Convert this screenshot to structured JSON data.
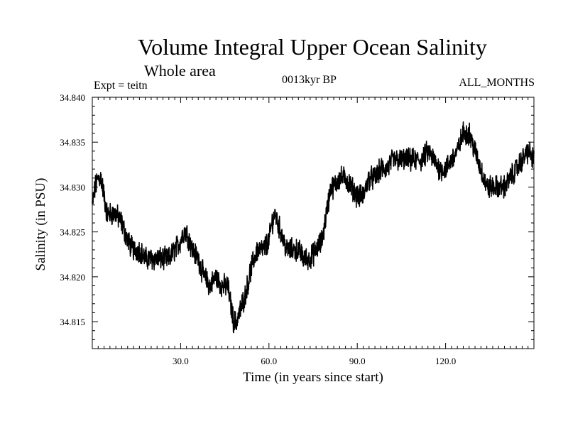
{
  "chart_data": {
    "type": "line",
    "title": "Volume Integral Upper Ocean Salinity",
    "subtitle": "Whole area",
    "left_note": "Expt = teitn",
    "center_note": "0013kyr BP",
    "right_note": "ALL_MONTHS",
    "xlabel": "Time (in years since start)",
    "ylabel": "Salinity (in PSU)",
    "xlim": [
      0,
      150
    ],
    "ylim": [
      34.812,
      34.84
    ],
    "xticks": [
      30,
      60,
      90,
      120
    ],
    "xtick_labels": [
      "30.0",
      "60.0",
      "90.0",
      "120.0"
    ],
    "yticks": [
      34.815,
      34.82,
      34.825,
      34.83,
      34.835,
      34.84
    ],
    "ytick_labels": [
      "34.815",
      "34.820",
      "34.825",
      "34.830",
      "34.835",
      "34.840"
    ],
    "series": [
      {
        "name": "Salinity",
        "color": "#000000",
        "x": [
          0,
          1,
          2,
          3,
          4,
          5,
          6,
          8,
          10,
          12,
          14,
          16,
          18,
          20,
          22,
          24,
          26,
          28,
          30,
          31,
          32,
          34,
          36,
          38,
          40,
          42,
          44,
          46,
          47,
          48,
          49,
          50,
          52,
          54,
          56,
          58,
          60,
          61,
          62,
          63,
          64,
          65,
          66,
          67,
          68,
          70,
          72,
          74,
          76,
          78,
          79,
          80,
          81,
          82,
          84,
          86,
          88,
          90,
          92,
          94,
          96,
          98,
          100,
          102,
          104,
          106,
          108,
          110,
          112,
          114,
          116,
          118,
          120,
          122,
          124,
          125,
          126,
          127,
          128,
          129,
          130,
          131,
          132,
          133,
          134,
          136,
          138,
          140,
          142,
          144,
          146,
          148,
          150
        ],
        "values": [
          34.828,
          34.83,
          34.831,
          34.831,
          34.829,
          34.827,
          34.827,
          34.827,
          34.826,
          34.824,
          34.823,
          34.823,
          34.822,
          34.822,
          34.822,
          34.822,
          34.822,
          34.823,
          34.824,
          34.825,
          34.825,
          34.823,
          34.822,
          34.82,
          34.819,
          34.82,
          34.819,
          34.819,
          34.817,
          34.815,
          34.815,
          34.816,
          34.818,
          34.821,
          34.823,
          34.823,
          34.824,
          34.826,
          34.827,
          34.826,
          34.825,
          34.824,
          34.823,
          34.823,
          34.823,
          34.823,
          34.822,
          34.822,
          34.823,
          34.824,
          34.826,
          34.828,
          34.83,
          34.83,
          34.831,
          34.831,
          34.83,
          34.829,
          34.829,
          34.831,
          34.831,
          34.832,
          34.832,
          34.833,
          34.833,
          34.833,
          34.833,
          34.833,
          34.833,
          34.834,
          34.833,
          34.832,
          34.832,
          34.833,
          34.834,
          34.835,
          34.836,
          34.836,
          34.836,
          34.835,
          34.834,
          34.833,
          34.832,
          34.831,
          34.83,
          34.83,
          34.83,
          34.83,
          34.831,
          34.832,
          34.833,
          34.834,
          34.833
        ]
      }
    ]
  }
}
